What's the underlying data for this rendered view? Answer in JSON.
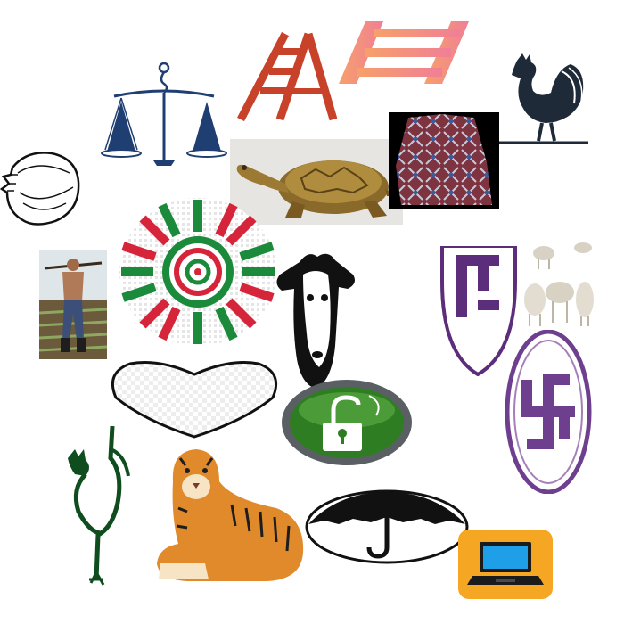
{
  "scene": {
    "background": "#ffffff",
    "items": [
      {
        "name": "scales-icon",
        "color": "#1f3f73"
      },
      {
        "name": "ladder-red-icon",
        "color": "#c8422a"
      },
      {
        "name": "ladder-pink-icon",
        "color": "#f07f96"
      },
      {
        "name": "rooster-dark-icon",
        "color": "#1f2a38"
      },
      {
        "name": "seashell-icon",
        "color": "#111111"
      },
      {
        "name": "tortoise-figurine-image",
        "color": "#8a6a2a"
      },
      {
        "name": "patterned-fabric-image",
        "color": "#7d3340"
      },
      {
        "name": "woven-basket-image",
        "colors": [
          "#1b8a3b",
          "#d6253b",
          "#ffffff"
        ]
      },
      {
        "name": "farmer-photo-image",
        "color": "#5c6b3a"
      },
      {
        "name": "goat-head-icon",
        "color": "#111111"
      },
      {
        "name": "purple-emblem-half-icon",
        "color": "#5c2d7a"
      },
      {
        "name": "sheep-herd-image",
        "color": "#d8d2c4"
      },
      {
        "name": "heart-outline-icon",
        "color": "#111111"
      },
      {
        "name": "green-unlock-badge-icon",
        "color": "#2f7d22"
      },
      {
        "name": "purple-swastika-emblem-icon",
        "color": "#6f3f8f"
      },
      {
        "name": "rooster-green-icon",
        "color": "#0f4d1e"
      },
      {
        "name": "tiger-image",
        "color": "#e08a2b"
      },
      {
        "name": "umbrella-oval-icon",
        "color": "#111111"
      },
      {
        "name": "laptop-icon",
        "color": "#f5a623"
      }
    ]
  }
}
